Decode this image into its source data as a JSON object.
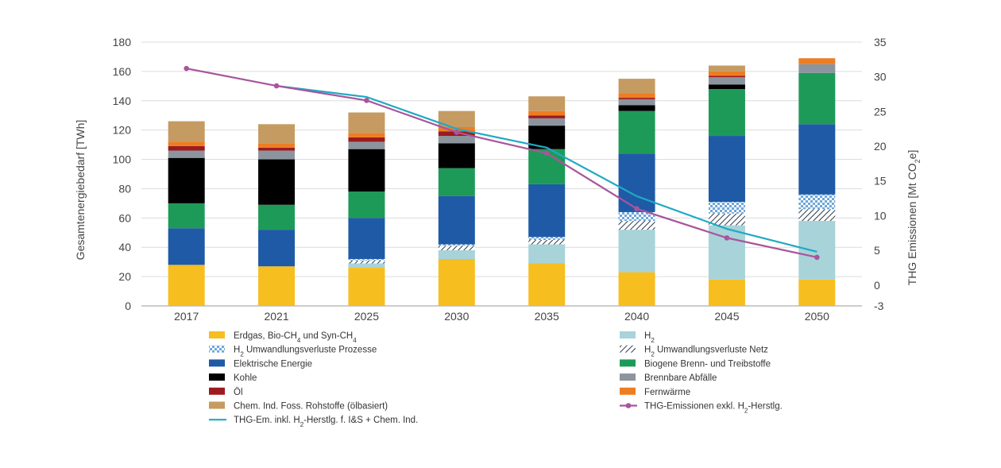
{
  "chart_data": {
    "type": "bar",
    "stacked": true,
    "categories": [
      "2017",
      "2021",
      "2025",
      "2030",
      "2035",
      "2040",
      "2045",
      "2050"
    ],
    "ylabel": "Gesamtenergiebedarf [TWh]",
    "ylim": [
      0,
      180
    ],
    "yticks": [
      "0",
      "20",
      "40",
      "60",
      "80",
      "100",
      "120",
      "140",
      "160",
      "180"
    ],
    "y2label": {
      "main": "THG Emissionen [Mt CO",
      "sub": "2",
      "tail": "e]"
    },
    "y2lim": [
      -3,
      35
    ],
    "y2ticks": [
      "-3",
      "0",
      "5",
      "10",
      "15",
      "20",
      "25",
      "30",
      "35"
    ],
    "grid": true,
    "legend_position": "bottom",
    "series": [
      {
        "key": "erdgas",
        "legend": [
          [
            "Erdgas, Bio-CH",
            ""
          ],
          [
            "4",
            "sub"
          ],
          [
            " und Syn-CH",
            ""
          ],
          [
            "4",
            "sub"
          ]
        ],
        "color": "#F7BE20",
        "pattern": "none",
        "values": [
          28,
          27,
          26,
          32,
          29,
          23,
          18,
          18
        ]
      },
      {
        "key": "h2",
        "legend": [
          [
            "H",
            ""
          ],
          [
            "2",
            "sub"
          ]
        ],
        "color": "#A7D3D9",
        "pattern": "none",
        "values": [
          0,
          0,
          3,
          6,
          13,
          29,
          37,
          40
        ]
      },
      {
        "key": "h2_umw_netz",
        "legend": [
          [
            "H",
            ""
          ],
          [
            "2",
            "sub"
          ],
          [
            " Umwandlungsverluste Netz",
            ""
          ]
        ],
        "color": "#2D3A4A",
        "pattern": "hatch",
        "values": [
          0,
          0,
          2,
          3,
          3,
          6,
          8,
          8
        ]
      },
      {
        "key": "h2_umw_prozesse",
        "legend": [
          [
            "H",
            ""
          ],
          [
            "2",
            "sub"
          ],
          [
            " Umwandlungsverluste Prozesse",
            ""
          ]
        ],
        "color": "#6FA7D9",
        "pattern": "checker",
        "values": [
          0,
          0,
          1,
          1,
          2,
          6,
          8,
          10
        ]
      },
      {
        "key": "elektrisch",
        "legend": [
          [
            "Elektrische Energie",
            ""
          ]
        ],
        "color": "#1F5AA6",
        "pattern": "none",
        "values": [
          25,
          25,
          28,
          33,
          36,
          40,
          45,
          48
        ]
      },
      {
        "key": "biogen",
        "legend": [
          [
            "Biogene Brenn- und Treibstoffe",
            ""
          ]
        ],
        "color": "#1E9A58",
        "pattern": "none",
        "values": [
          17,
          17,
          18,
          19,
          24,
          29,
          32,
          35
        ]
      },
      {
        "key": "kohle",
        "legend": [
          [
            "Kohle",
            ""
          ]
        ],
        "color": "#000000",
        "pattern": "none",
        "values": [
          31,
          31,
          29,
          17,
          16,
          4,
          3,
          0
        ]
      },
      {
        "key": "abfaelle",
        "legend": [
          [
            "Brennbare Abfälle",
            ""
          ]
        ],
        "color": "#8C959D",
        "pattern": "none",
        "values": [
          5,
          6,
          5,
          5,
          5,
          4,
          5,
          6
        ]
      },
      {
        "key": "oel",
        "legend": [
          [
            "Öl",
            ""
          ]
        ],
        "color": "#9C1B20",
        "pattern": "none",
        "values": [
          3,
          2,
          3,
          3,
          2,
          1,
          1,
          0
        ]
      },
      {
        "key": "fernwaerme",
        "legend": [
          [
            "Fernwärme",
            ""
          ]
        ],
        "color": "#EE7D22",
        "pattern": "none",
        "values": [
          3,
          3,
          3,
          3,
          3,
          3,
          3,
          4
        ]
      },
      {
        "key": "chem_ind",
        "legend": [
          [
            "Chem. Ind. Foss. Rohstoffe (ölbasiert)",
            ""
          ]
        ],
        "color": "#C59B62",
        "pattern": "none",
        "values": [
          14,
          13,
          14,
          11,
          10,
          10,
          4,
          0
        ]
      }
    ],
    "lines": [
      {
        "key": "thg_inkl",
        "legend": [
          [
            "THG-Em. inkl. H",
            ""
          ],
          [
            "2",
            "sub"
          ],
          [
            "-Herstlg. f. I&S + Chem. Ind.",
            ""
          ]
        ],
        "color": "#1FA9C4",
        "axis": "right",
        "marker": "none",
        "values": [
          null,
          28.7,
          27.1,
          22.5,
          19.8,
          12.8,
          8.1,
          4.8
        ]
      },
      {
        "key": "thg_exkl",
        "legend": [
          [
            "THG-Emissionen exkl. H",
            ""
          ],
          [
            "2",
            "sub"
          ],
          [
            "-Herstlg.",
            ""
          ]
        ],
        "color": "#A8559C",
        "axis": "right",
        "marker": "circle",
        "values": [
          31.2,
          28.7,
          26.6,
          22.0,
          19.0,
          11.0,
          6.8,
          4.0
        ]
      }
    ],
    "legend_order": [
      [
        "erdgas",
        "h2"
      ],
      [
        "h2_umw_prozesse",
        "h2_umw_netz"
      ],
      [
        "elektrisch",
        "biogen"
      ],
      [
        "kohle",
        "abfaelle"
      ],
      [
        "oel",
        "fernwaerme"
      ],
      [
        "chem_ind",
        "thg_exkl"
      ],
      [
        "thg_inkl",
        null
      ]
    ]
  }
}
